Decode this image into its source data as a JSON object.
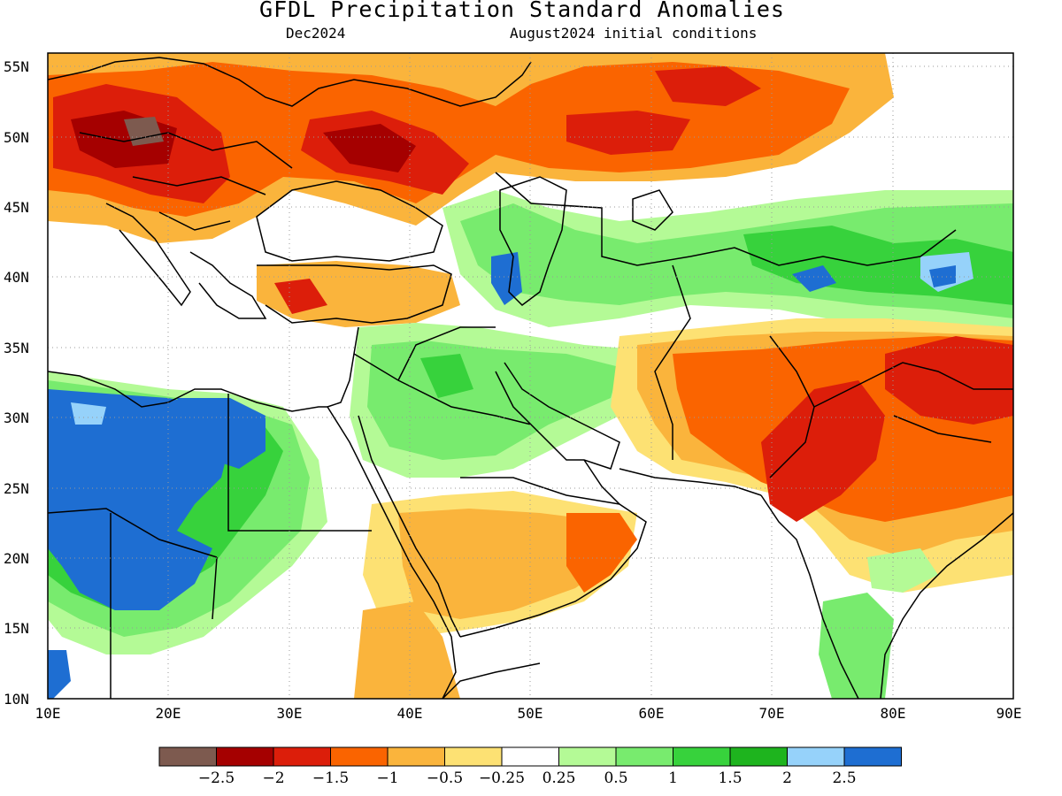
{
  "title": "GFDL Precipitation Standard Anomalies",
  "subtitle_left": "Dec2024",
  "subtitle_right": "August2024 initial conditions",
  "map": {
    "lon_range": [
      10,
      90
    ],
    "lat_range": [
      10,
      56
    ],
    "lat_ticks": [
      {
        "value": 55,
        "label": "55N"
      },
      {
        "value": 50,
        "label": "50N"
      },
      {
        "value": 45,
        "label": "45N"
      },
      {
        "value": 40,
        "label": "40N"
      },
      {
        "value": 35,
        "label": "35N"
      },
      {
        "value": 30,
        "label": "30N"
      },
      {
        "value": 25,
        "label": "25N"
      },
      {
        "value": 20,
        "label": "20N"
      },
      {
        "value": 15,
        "label": "15N"
      },
      {
        "value": 10,
        "label": "10N"
      }
    ],
    "lon_ticks": [
      {
        "value": 10,
        "label": "10E"
      },
      {
        "value": 20,
        "label": "20E"
      },
      {
        "value": 30,
        "label": "30E"
      },
      {
        "value": 40,
        "label": "40E"
      },
      {
        "value": 50,
        "label": "50E"
      },
      {
        "value": 60,
        "label": "60E"
      },
      {
        "value": 70,
        "label": "70E"
      },
      {
        "value": 80,
        "label": "80E"
      },
      {
        "value": 90,
        "label": "90E"
      }
    ]
  },
  "colorbar": {
    "colors": [
      "#7d5a4f",
      "#a50000",
      "#dc1e0a",
      "#fa6400",
      "#fab43c",
      "#fde173",
      "#ffffff",
      "#b4fa96",
      "#78eb6e",
      "#37d23c",
      "#1eb41e",
      "#96d2fa",
      "#1e6ed2"
    ],
    "labels": [
      "−2.5",
      "−2",
      "−1.5",
      "−1",
      "−0.5",
      "−0.25",
      "0.25",
      "0.5",
      "1",
      "1.5",
      "2",
      "2.5"
    ]
  },
  "colors": {
    "very_dry": "#a50000",
    "dry": "#dc1e0a",
    "moderate_dry": "#fa6400",
    "slight_dry": "#fab43c",
    "near_dry": "#fde173",
    "near_wet": "#b4fa96",
    "wet": "#78eb6e",
    "very_wet": "#37d23c",
    "extreme_wet": "#1e6ed2",
    "light_blue": "#96d2fa"
  }
}
